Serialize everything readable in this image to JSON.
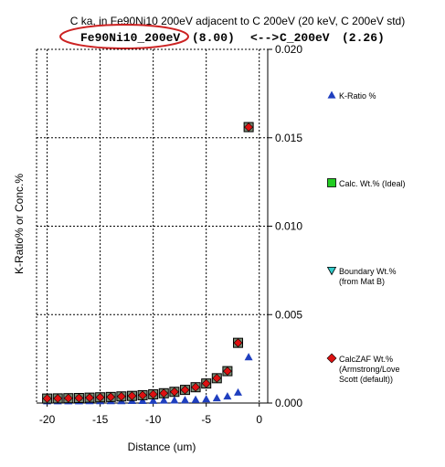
{
  "chart_data": {
    "type": "scatter",
    "title": "C ka, in Fe90Ni10 200eV adjacent to C 200eV (20 keV, C 200eV std)",
    "subtitle": {
      "left_material": "Fe90Ni10_200eV",
      "left_value": "(8.00)",
      "arrow": "<-->",
      "right_material": "C_200eV",
      "right_value": "(2.26)"
    },
    "xlabel": "Distance (um)",
    "ylabel": "K-Ratio% or Conc.%",
    "xlim": [
      -21,
      0.8
    ],
    "ylim": [
      0,
      0.02
    ],
    "x_ticks": [
      -20,
      -15,
      -10,
      -5,
      0
    ],
    "x_tick_labels": [
      "-20",
      "-15",
      "-10",
      "-5",
      "0"
    ],
    "y_ticks": [
      0,
      0.005,
      0.01,
      0.015,
      0.02
    ],
    "y_tick_labels": [
      "0.000",
      "0.005",
      "0.010",
      "0.015",
      "0.020"
    ],
    "grid": true,
    "legend_position": "right",
    "series": [
      {
        "name": "K-Ratio %",
        "marker": "triangle-up",
        "color": "#1f3fbf",
        "x": [
          -20,
          -19,
          -18,
          -17,
          -16,
          -15,
          -14,
          -13,
          -12,
          -11,
          -10,
          -9,
          -8,
          -7,
          -6,
          -5,
          -4,
          -3,
          -2,
          -1
        ],
        "y": [
          1e-05,
          1e-05,
          1e-05,
          1e-05,
          2e-05,
          2e-05,
          2e-05,
          2e-05,
          3e-05,
          3e-05,
          4e-05,
          5e-05,
          6e-05,
          7e-05,
          9e-05,
          0.00012,
          0.00018,
          0.00028,
          0.0005,
          0.0025
        ]
      },
      {
        "name": "Calc. Wt.% (Ideal)",
        "marker": "square",
        "color": "#22cc22",
        "x": [],
        "y": []
      },
      {
        "name": "Boundary Wt.% (from Mat B)",
        "marker": "triangle-down",
        "color": "#33cccc",
        "x": [],
        "y": []
      },
      {
        "name": "CalcZAF Wt.% (Armstrong/Love Scott (default))",
        "marker": "diamond-in-square",
        "color": "#dd1111",
        "x": [
          -20,
          -19,
          -18,
          -17,
          -16,
          -15,
          -14,
          -13,
          -12,
          -11,
          -10,
          -9,
          -8,
          -7,
          -6,
          -5,
          -4,
          -3,
          -2,
          -1
        ],
        "y": [
          0.00015,
          0.00016,
          0.00017,
          0.00018,
          0.0002,
          0.00022,
          0.00024,
          0.00027,
          0.0003,
          0.00034,
          0.00039,
          0.00045,
          0.00053,
          0.00064,
          0.00079,
          0.001,
          0.0013,
          0.0017,
          0.0033,
          0.0155
        ]
      }
    ],
    "legend_entries": [
      {
        "lines": [
          "K-Ratio %"
        ]
      },
      {
        "lines": [
          "Calc. Wt.% (Ideal)"
        ]
      },
      {
        "lines": [
          "Boundary Wt.%",
          "(from Mat B)"
        ]
      },
      {
        "lines": [
          "CalcZAF Wt.%",
          "(Armstrong/Love",
          "Scott (default))"
        ]
      }
    ],
    "highlight_color": "#cc2222"
  }
}
